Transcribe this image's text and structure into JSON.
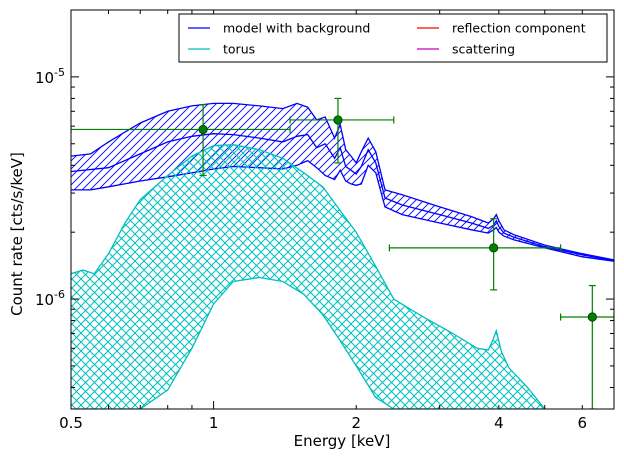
{
  "chart_data": {
    "type": "line",
    "xscale": "log",
    "yscale": "log",
    "xlim": [
      0.5,
      7.0
    ],
    "ylim": [
      3.2e-07,
      2e-05
    ],
    "xlabel": "Energy [keV]",
    "ylabel": "Count rate [cts/s/keV]",
    "x_ticks": [
      {
        "value": 0.5,
        "label": "0.5"
      },
      {
        "value": 1,
        "label": "1"
      },
      {
        "value": 2,
        "label": "2"
      },
      {
        "value": 4,
        "label": "4"
      },
      {
        "value": 6,
        "label": "6"
      }
    ],
    "y_ticks": [
      {
        "value": 1e-06,
        "base": "10",
        "exp": "-6"
      },
      {
        "value": 1e-05,
        "base": "10",
        "exp": "-5"
      }
    ],
    "grid": false,
    "legend": {
      "placement": "top-right",
      "columns": 2,
      "entries": [
        {
          "label": "model with background",
          "color": "#0000ff"
        },
        {
          "label": "torus",
          "color": "#00bfbf"
        },
        {
          "label": "reflection component",
          "color": "#ff0000"
        },
        {
          "label": "scattering",
          "color": "#bf00bf"
        }
      ]
    },
    "bands": [
      {
        "series": "model with background",
        "color": "#0000ff",
        "hatch": "diagonal",
        "x": [
          0.5,
          0.55,
          0.6,
          0.7,
          0.8,
          0.9,
          1.0,
          1.1,
          1.25,
          1.4,
          1.5,
          1.58,
          1.65,
          1.72,
          1.8,
          1.85,
          1.9,
          1.95,
          2.0,
          2.05,
          2.12,
          2.2,
          2.3,
          2.5,
          3.0,
          3.5,
          3.8,
          3.9,
          3.95,
          4.0,
          4.1,
          4.3,
          5.0,
          6.0,
          7.0
        ],
        "upper": [
          4.4e-06,
          4.5e-06,
          5.1e-06,
          6.2e-06,
          7e-06,
          7.4e-06,
          7.6e-06,
          7.6e-06,
          7.4e-06,
          7.2e-06,
          7.6e-06,
          7.3e-06,
          6.4e-06,
          6.6e-06,
          5.3e-06,
          6.1e-06,
          4.7e-06,
          4.4e-06,
          4.1e-06,
          4.6e-06,
          5.3e-06,
          4.6e-06,
          3.1e-06,
          2.95e-06,
          2.6e-06,
          2.35e-06,
          2.2e-06,
          2.3e-06,
          2.4e-06,
          2.25e-06,
          2.05e-06,
          1.95e-06,
          1.75e-06,
          1.6e-06,
          1.5e-06
        ],
        "lower": [
          3.1e-06,
          3.1e-06,
          3.2e-06,
          3.4e-06,
          3.55e-06,
          3.7e-06,
          3.85e-06,
          3.95e-06,
          3.9e-06,
          3.85e-06,
          4e-06,
          4.2e-06,
          3.9e-06,
          3.6e-06,
          3.45e-06,
          3.8e-06,
          3.4e-06,
          3.3e-06,
          3.25e-06,
          3.3e-06,
          4e-06,
          3.7e-06,
          2.6e-06,
          2.4e-06,
          2.2e-06,
          2.05e-06,
          1.98e-06,
          2.05e-06,
          2.1e-06,
          2e-06,
          1.92e-06,
          1.85e-06,
          1.7e-06,
          1.55e-06,
          1.48e-06
        ]
      },
      {
        "series": "torus",
        "color": "#00bfbf",
        "hatch": "cross",
        "x": [
          0.5,
          0.53,
          0.56,
          0.6,
          0.65,
          0.7,
          0.8,
          0.9,
          1.0,
          1.1,
          1.25,
          1.4,
          1.55,
          1.7,
          1.85,
          2.0,
          2.2,
          2.4,
          2.6,
          2.8,
          3.2,
          3.6,
          3.8,
          3.88,
          3.95,
          4.05,
          4.2,
          4.6,
          5.0
        ],
        "upper": [
          1.3e-06,
          1.35e-06,
          1.3e-06,
          1.6e-06,
          2.2e-06,
          2.8e-06,
          3.6e-06,
          4.4e-06,
          4.9e-06,
          4.95e-06,
          4.7e-06,
          4.3e-06,
          3.7e-06,
          3.2e-06,
          2.5e-06,
          2e-06,
          1.4e-06,
          1e-06,
          9e-07,
          8.2e-07,
          7e-07,
          6e-07,
          5.9e-07,
          6.5e-07,
          7.2e-07,
          5.8e-07,
          4.9e-07,
          4e-07,
          3.2e-07
        ],
        "lower": [
          3.2e-07,
          3.2e-07,
          3.2e-07,
          3.2e-07,
          3.2e-07,
          3.2e-07,
          3.9e-07,
          6e-07,
          9.5e-07,
          1.2e-06,
          1.25e-06,
          1.2e-06,
          1.05e-06,
          8.5e-07,
          6.5e-07,
          5e-07,
          3.6e-07,
          3.2e-07,
          3.2e-07,
          3.2e-07,
          3.2e-07,
          3.2e-07,
          3.2e-07,
          3.2e-07,
          3.2e-07,
          3.2e-07,
          3.2e-07,
          3.2e-07,
          3.2e-07
        ]
      }
    ],
    "lines": [
      {
        "series": "model with background",
        "color": "#0000ff",
        "x": [
          0.5,
          0.6,
          0.7,
          0.8,
          0.9,
          1.0,
          1.1,
          1.25,
          1.4,
          1.5,
          1.58,
          1.65,
          1.72,
          1.8,
          1.85,
          1.9,
          1.95,
          2.0,
          2.05,
          2.12,
          2.2,
          2.3,
          2.5,
          3.0,
          3.5,
          3.8,
          3.9,
          3.95,
          4.0,
          4.1,
          4.3,
          5.0,
          6.0,
          7.0
        ],
        "y": [
          3.75e-06,
          3.9e-06,
          4.5e-06,
          5.1e-06,
          5.4e-06,
          5.55e-06,
          5.5e-06,
          5.3e-06,
          5.1e-06,
          5.4e-06,
          5.5e-06,
          4.8e-06,
          5e-06,
          4.3e-06,
          4.8e-06,
          3.95e-06,
          3.8e-06,
          3.65e-06,
          3.95e-06,
          4.7e-06,
          4.1e-06,
          2.85e-06,
          2.65e-06,
          2.4e-06,
          2.2e-06,
          2.08e-06,
          2.15e-06,
          2.25e-06,
          2.12e-06,
          1.98e-06,
          1.9e-06,
          1.72e-06,
          1.58e-06,
          1.49e-06
        ]
      }
    ],
    "data_points": [
      {
        "x": 0.95,
        "y": 5.8e-06,
        "xerr": [
          0.5,
          1.45
        ],
        "yerr": [
          3.6e-06,
          7.5e-06
        ],
        "color": "#008000"
      },
      {
        "x": 1.83,
        "y": 6.4e-06,
        "xerr": [
          1.45,
          2.4
        ],
        "yerr": [
          4.1e-06,
          8e-06
        ],
        "color": "#008000"
      },
      {
        "x": 3.9,
        "y": 1.7e-06,
        "xerr": [
          2.35,
          5.4
        ],
        "yerr": [
          1.1e-06,
          2.3e-06
        ],
        "color": "#008000"
      },
      {
        "x": 6.3,
        "y": 8.3e-07,
        "xerr": [
          5.4,
          7.0
        ],
        "yerr": [
          3.2e-07,
          1.15e-06
        ],
        "color": "#008000"
      }
    ]
  }
}
